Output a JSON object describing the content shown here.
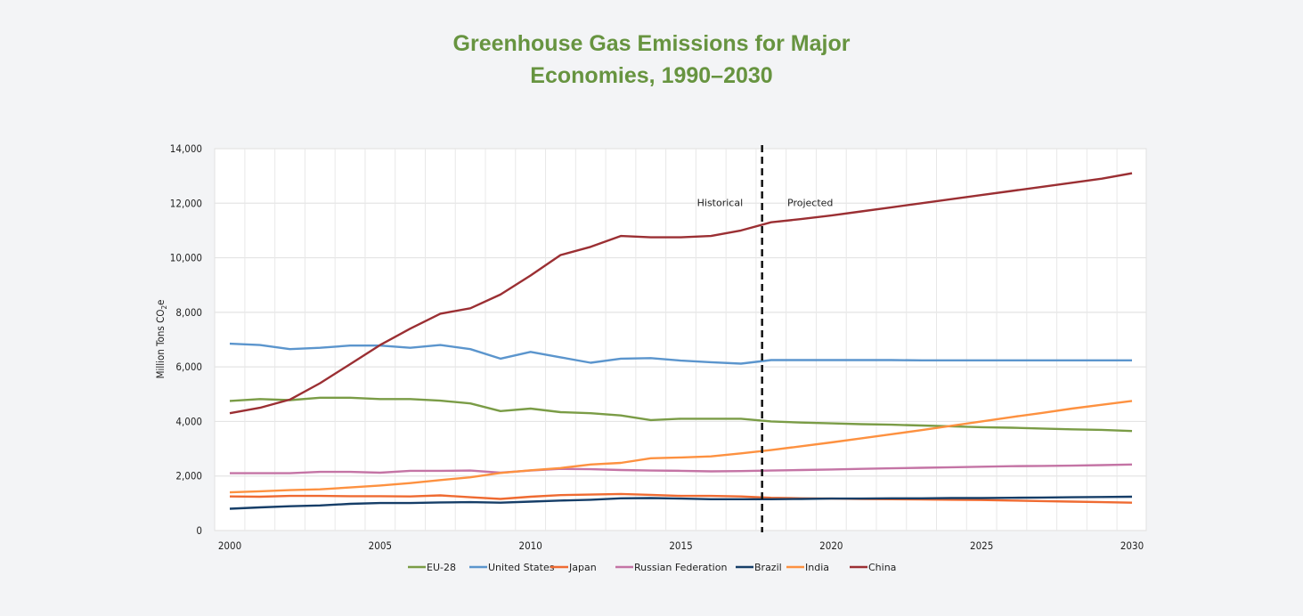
{
  "title_lines": [
    "Greenhouse Gas Emissions for Major",
    "Economies, 1990–2030"
  ],
  "chart_data": {
    "type": "line",
    "title": "Greenhouse Gas Emissions for Major Economies, 1990–2030",
    "xlabel": "",
    "ylabel": "Million Tons CO₂e",
    "ylabel_main": "Million Tons CO",
    "ylabel_sub": "2",
    "ylabel_tail": "e",
    "xlim": [
      2000,
      2030
    ],
    "ylim": [
      0,
      14000
    ],
    "grid": true,
    "legend_position": "bottom",
    "x_ticks": [
      2000,
      2005,
      2010,
      2015,
      2020,
      2025,
      2030
    ],
    "x_tick_labels": [
      "2000",
      "2005",
      "2010",
      "2015",
      "2020",
      "2025",
      "2030"
    ],
    "y_ticks": [
      0,
      2000,
      4000,
      6000,
      8000,
      10000,
      12000,
      14000
    ],
    "y_tick_labels": [
      "0",
      "2,000",
      "4,000",
      "6,000",
      "8,000",
      "10,000",
      "12,000",
      "14,000"
    ],
    "divider": {
      "x": 2017.7,
      "style": "dashed",
      "color": "#111111"
    },
    "annotations": [
      {
        "text": "Historical",
        "x": 2016.3,
        "y": 12000
      },
      {
        "text": "Projected",
        "x": 2019.3,
        "y": 12000
      }
    ],
    "x": [
      2000,
      2001,
      2002,
      2003,
      2004,
      2005,
      2006,
      2007,
      2008,
      2009,
      2010,
      2011,
      2012,
      2013,
      2014,
      2015,
      2016,
      2017,
      2018,
      2019,
      2020,
      2021,
      2022,
      2023,
      2024,
      2025,
      2026,
      2027,
      2028,
      2029,
      2030
    ],
    "series": [
      {
        "name": "EU-28",
        "color": "#7a9c46",
        "values": [
          4750,
          4820,
          4780,
          4870,
          4870,
          4820,
          4820,
          4760,
          4660,
          4380,
          4470,
          4340,
          4300,
          4220,
          4050,
          4100,
          4100,
          4100,
          4000,
          3960,
          3930,
          3900,
          3880,
          3850,
          3820,
          3790,
          3770,
          3740,
          3710,
          3690,
          3650
        ]
      },
      {
        "name": "United States",
        "color": "#5b95cd",
        "values": [
          6850,
          6800,
          6650,
          6700,
          6780,
          6780,
          6700,
          6800,
          6650,
          6300,
          6550,
          6350,
          6150,
          6300,
          6320,
          6230,
          6170,
          6120,
          6250,
          6250,
          6250,
          6250,
          6250,
          6240,
          6240,
          6240,
          6240,
          6240,
          6240,
          6240,
          6240
        ]
      },
      {
        "name": "Japan",
        "color": "#ef6b32",
        "values": [
          1250,
          1240,
          1270,
          1270,
          1260,
          1260,
          1250,
          1290,
          1220,
          1160,
          1240,
          1300,
          1320,
          1340,
          1310,
          1270,
          1270,
          1250,
          1200,
          1180,
          1170,
          1160,
          1150,
          1140,
          1130,
          1120,
          1100,
          1080,
          1060,
          1040,
          1020
        ]
      },
      {
        "name": "Russian Federation",
        "color": "#c474a5",
        "values": [
          2100,
          2100,
          2100,
          2150,
          2150,
          2120,
          2190,
          2190,
          2200,
          2120,
          2200,
          2260,
          2250,
          2220,
          2200,
          2190,
          2170,
          2180,
          2200,
          2220,
          2240,
          2260,
          2280,
          2300,
          2320,
          2340,
          2360,
          2370,
          2380,
          2400,
          2420
        ]
      },
      {
        "name": "Brazil",
        "color": "#163e68",
        "values": [
          800,
          850,
          890,
          920,
          980,
          1010,
          1010,
          1030,
          1040,
          1020,
          1060,
          1100,
          1130,
          1180,
          1190,
          1170,
          1150,
          1150,
          1150,
          1160,
          1170,
          1170,
          1180,
          1180,
          1190,
          1190,
          1200,
          1210,
          1220,
          1230,
          1240
        ]
      },
      {
        "name": "India",
        "color": "#fd9140",
        "values": [
          1400,
          1440,
          1480,
          1510,
          1580,
          1650,
          1740,
          1850,
          1950,
          2110,
          2210,
          2290,
          2420,
          2480,
          2650,
          2680,
          2720,
          2830,
          2950,
          3090,
          3230,
          3380,
          3530,
          3680,
          3840,
          4000,
          4160,
          4310,
          4470,
          4610,
          4750
        ]
      },
      {
        "name": "China",
        "color": "#9b2f33",
        "values": [
          4300,
          4500,
          4800,
          5400,
          6100,
          6800,
          7400,
          7950,
          8150,
          8650,
          9350,
          10100,
          10400,
          10800,
          10750,
          10750,
          10800,
          11000,
          11300,
          11420,
          11550,
          11700,
          11850,
          12000,
          12150,
          12300,
          12450,
          12600,
          12750,
          12900,
          13100
        ]
      }
    ]
  }
}
